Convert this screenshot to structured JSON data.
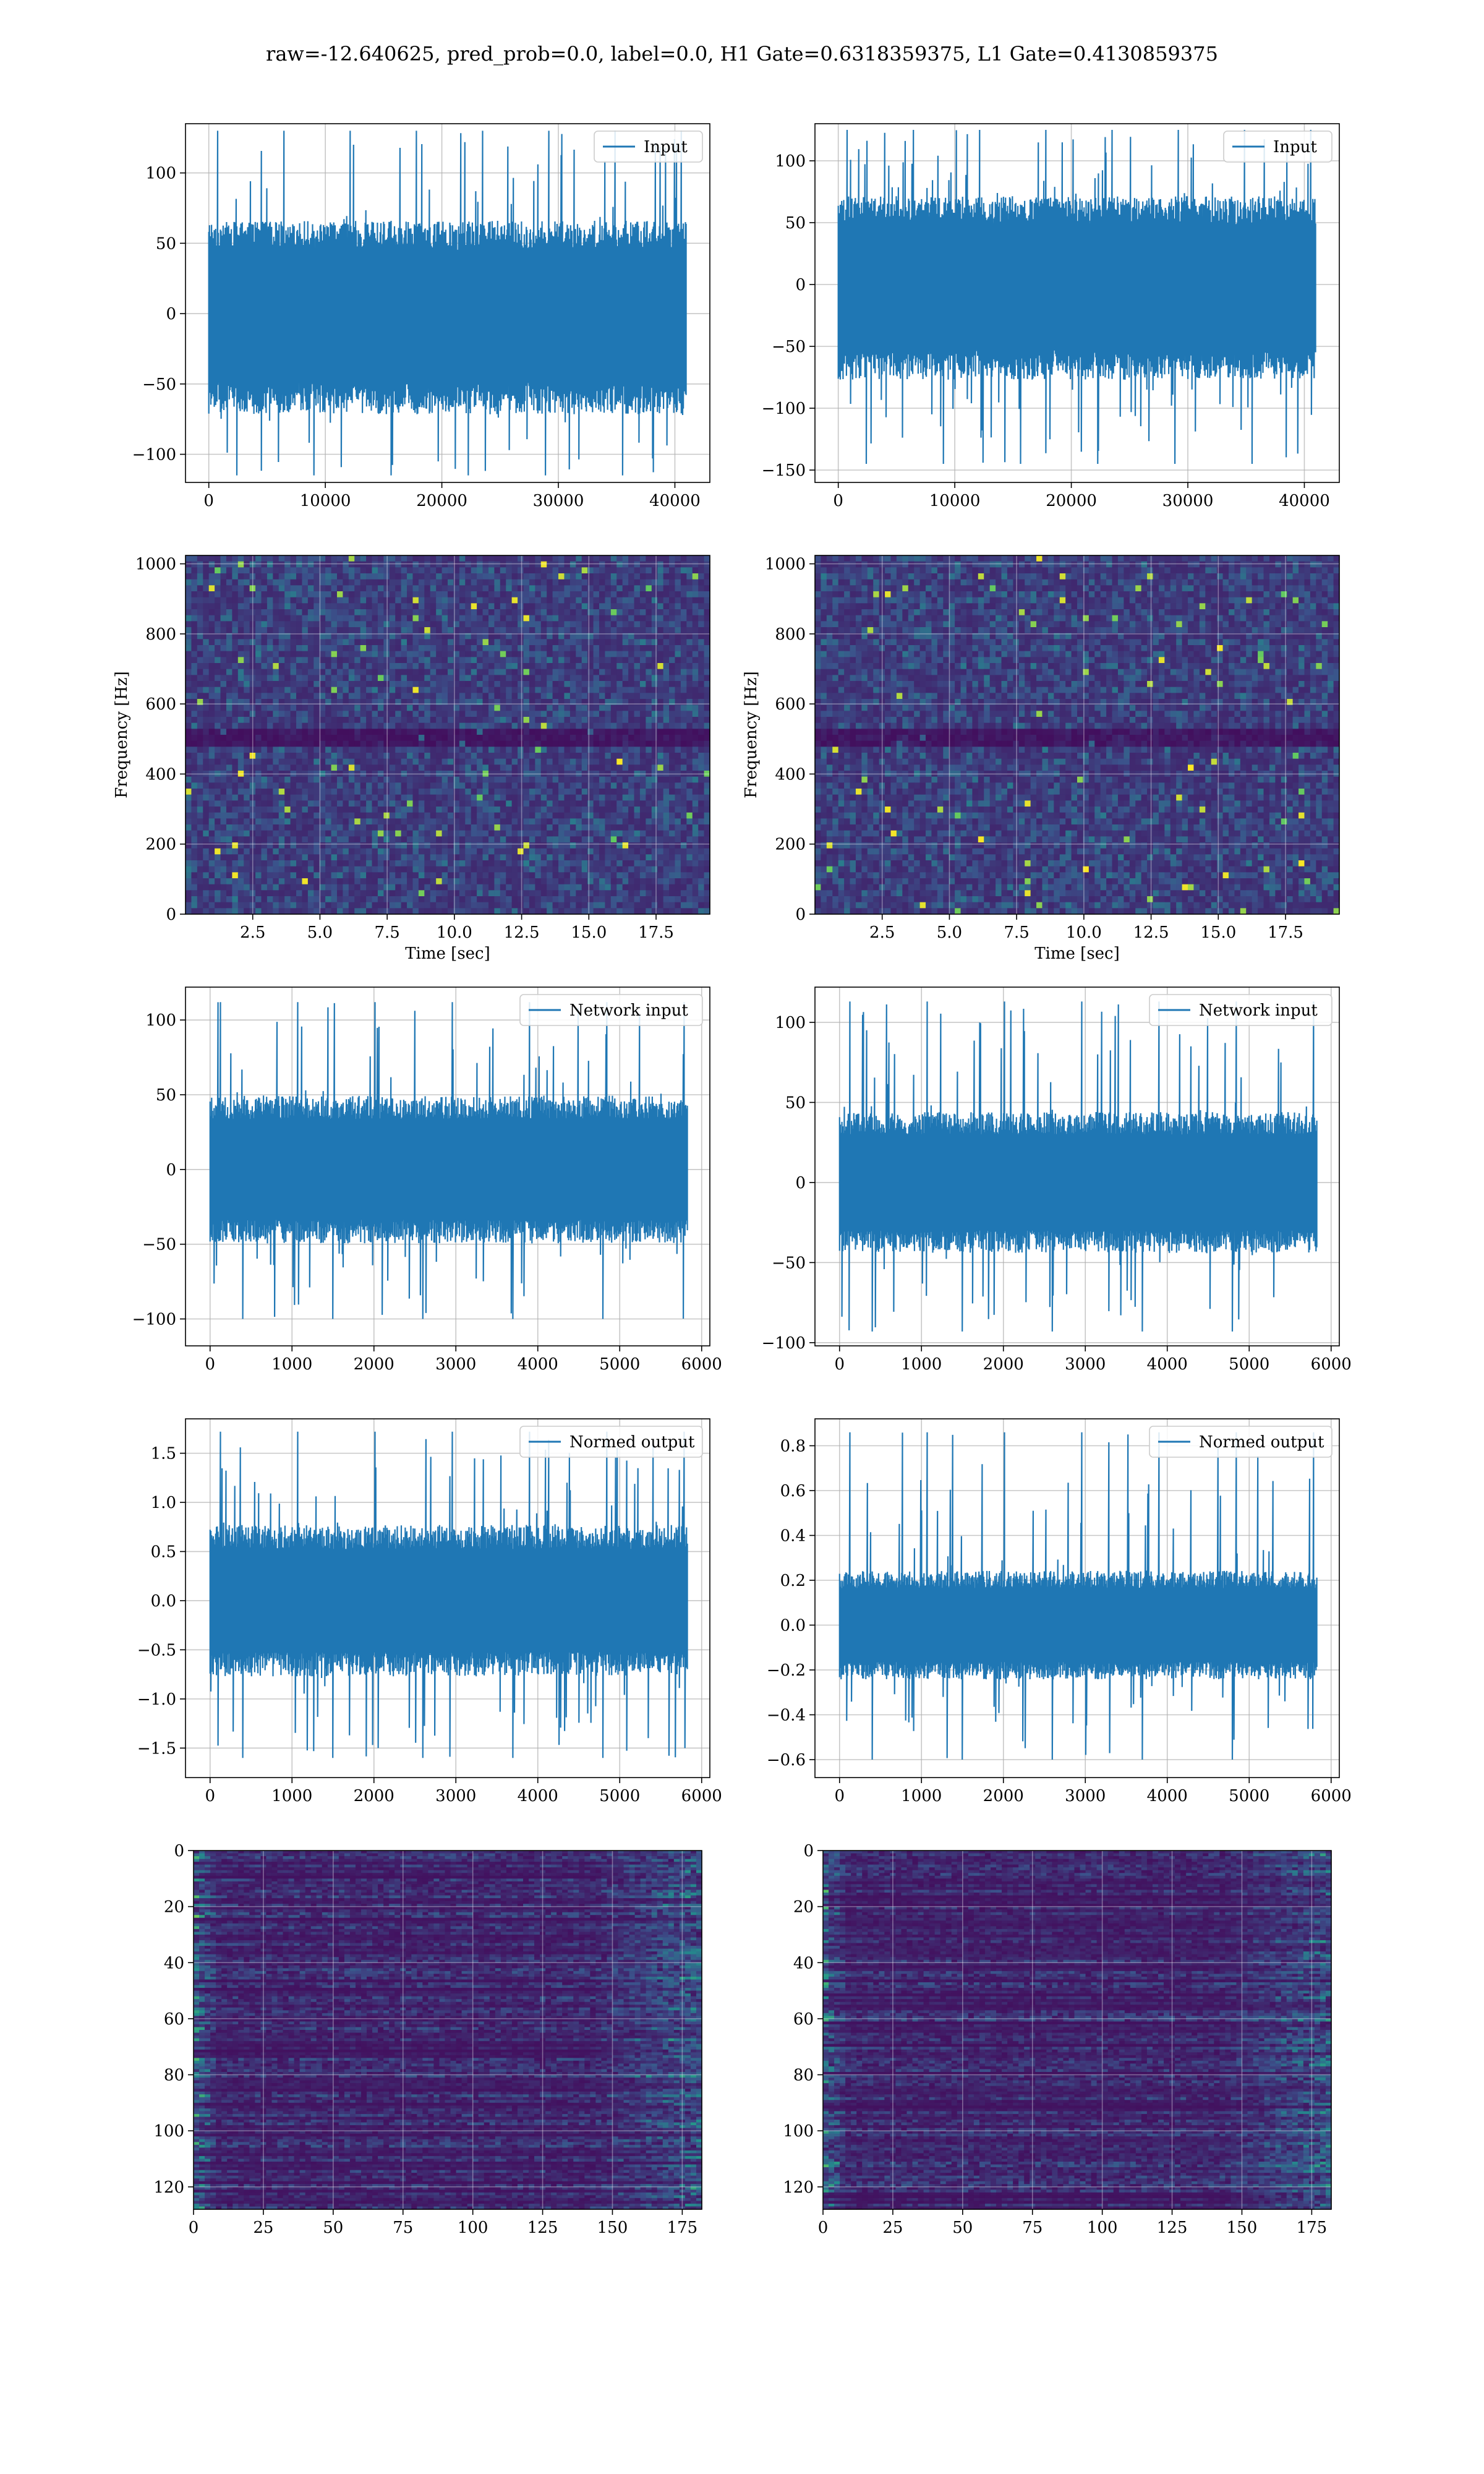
{
  "figure": {
    "suptitle": "raw=-12.640625, pred_prob=0.0, label=0.0, H1 Gate=0.6318359375, L1 Gate=0.4130859375"
  },
  "colors": {
    "series": "#1f77b4",
    "grid": "#b0b0b0",
    "heatmap_low": "#440154",
    "heatmap_mid": "#21918c",
    "heatmap_high": "#fde725"
  },
  "chart_data": [
    {
      "type": "line",
      "id": "input-left",
      "row": 1,
      "col": 1,
      "legend": "Input",
      "legend_position": "top-right",
      "xlim": [
        -2000,
        43000
      ],
      "ylim": [
        -120,
        135
      ],
      "xticks": [
        0,
        10000,
        20000,
        30000,
        40000
      ],
      "xtick_labels": [
        "0",
        "10000",
        "20000",
        "30000",
        "40000"
      ],
      "yticks": [
        -100,
        -50,
        0,
        50,
        100
      ],
      "ytick_labels": [
        "−100",
        "−50",
        "0",
        "50",
        "100"
      ],
      "x_range": [
        0,
        40960
      ],
      "n_points": 700,
      "envelope": {
        "upper": 60,
        "lower": -65,
        "spike_max": 130,
        "spike_min": -115
      },
      "grid": true
    },
    {
      "type": "line",
      "id": "input-right",
      "row": 1,
      "col": 2,
      "legend": "Input",
      "legend_position": "top-right",
      "xlim": [
        -2000,
        43000
      ],
      "ylim": [
        -160,
        130
      ],
      "xticks": [
        0,
        10000,
        20000,
        30000,
        40000
      ],
      "xtick_labels": [
        "0",
        "10000",
        "20000",
        "30000",
        "40000"
      ],
      "yticks": [
        -150,
        -100,
        -50,
        0,
        50,
        100
      ],
      "ytick_labels": [
        "−150",
        "−100",
        "−50",
        "0",
        "50",
        "100"
      ],
      "x_range": [
        0,
        40960
      ],
      "n_points": 700,
      "envelope": {
        "upper": 65,
        "lower": -70,
        "spike_max": 125,
        "spike_min": -145
      },
      "grid": true
    },
    {
      "type": "heatmap",
      "id": "spec-left",
      "row": 2,
      "col": 1,
      "xlabel": "Time [sec]",
      "ylabel": "Frequency [Hz]",
      "xlim": [
        0,
        19.5
      ],
      "ylim": [
        0,
        1024
      ],
      "xticks": [
        2.5,
        5.0,
        7.5,
        10.0,
        12.5,
        15.0,
        17.5
      ],
      "xtick_labels": [
        "2.5",
        "5.0",
        "7.5",
        "10.0",
        "12.5",
        "15.0",
        "17.5"
      ],
      "yticks": [
        0,
        200,
        400,
        600,
        800,
        1000
      ],
      "ytick_labels": [
        "0",
        "200",
        "400",
        "600",
        "800",
        "1000"
      ],
      "rows": 60,
      "cols": 90,
      "grid": true
    },
    {
      "type": "heatmap",
      "id": "spec-right",
      "row": 2,
      "col": 2,
      "xlabel": "Time [sec]",
      "ylabel": "Frequency [Hz]",
      "xlim": [
        0,
        19.5
      ],
      "ylim": [
        0,
        1024
      ],
      "xticks": [
        2.5,
        5.0,
        7.5,
        10.0,
        12.5,
        15.0,
        17.5
      ],
      "xtick_labels": [
        "2.5",
        "5.0",
        "7.5",
        "10.0",
        "12.5",
        "15.0",
        "17.5"
      ],
      "yticks": [
        0,
        200,
        400,
        600,
        800,
        1000
      ],
      "ytick_labels": [
        "0",
        "200",
        "400",
        "600",
        "800",
        "1000"
      ],
      "rows": 60,
      "cols": 90,
      "grid": true
    },
    {
      "type": "line",
      "id": "netin-left",
      "row": 3,
      "col": 1,
      "legend": "Network input",
      "legend_position": "top-right",
      "xlim": [
        -300,
        6100
      ],
      "ylim": [
        -118,
        122
      ],
      "xticks": [
        0,
        1000,
        2000,
        3000,
        4000,
        5000,
        6000
      ],
      "xtick_labels": [
        "0",
        "1000",
        "2000",
        "3000",
        "4000",
        "5000",
        "6000"
      ],
      "yticks": [
        -100,
        -50,
        0,
        50,
        100
      ],
      "ytick_labels": [
        "−100",
        "−50",
        "0",
        "50",
        "100"
      ],
      "x_range": [
        0,
        5825
      ],
      "n_points": 600,
      "envelope": {
        "upper": 45,
        "lower": -45,
        "spike_max": 112,
        "spike_min": -100
      },
      "grid": true
    },
    {
      "type": "line",
      "id": "netin-right",
      "row": 3,
      "col": 2,
      "legend": "Network input",
      "legend_position": "top-right",
      "xlim": [
        -300,
        6100
      ],
      "ylim": [
        -102,
        122
      ],
      "xticks": [
        0,
        1000,
        2000,
        3000,
        4000,
        5000,
        6000
      ],
      "xtick_labels": [
        "0",
        "1000",
        "2000",
        "3000",
        "4000",
        "5000",
        "6000"
      ],
      "yticks": [
        -100,
        -50,
        0,
        50,
        100
      ],
      "ytick_labels": [
        "−100",
        "−50",
        "0",
        "50",
        "100"
      ],
      "x_range": [
        0,
        5825
      ],
      "n_points": 600,
      "envelope": {
        "upper": 40,
        "lower": -40,
        "spike_max": 113,
        "spike_min": -93
      },
      "grid": true
    },
    {
      "type": "line",
      "id": "normout-left",
      "row": 4,
      "col": 1,
      "legend": "Normed output",
      "legend_position": "top-right",
      "xlim": [
        -300,
        6100
      ],
      "ylim": [
        -1.8,
        1.85
      ],
      "xticks": [
        0,
        1000,
        2000,
        3000,
        4000,
        5000,
        6000
      ],
      "xtick_labels": [
        "0",
        "1000",
        "2000",
        "3000",
        "4000",
        "5000",
        "6000"
      ],
      "yticks": [
        -1.5,
        -1.0,
        -0.5,
        0.0,
        0.5,
        1.0,
        1.5
      ],
      "ytick_labels": [
        "−1.5",
        "−1.0",
        "−0.5",
        "0.0",
        "0.5",
        "1.0",
        "1.5"
      ],
      "x_range": [
        0,
        5825
      ],
      "n_points": 600,
      "envelope": {
        "upper": 0.7,
        "lower": -0.7,
        "spike_max": 1.72,
        "spike_min": -1.6
      },
      "grid": true
    },
    {
      "type": "line",
      "id": "normout-right",
      "row": 4,
      "col": 2,
      "legend": "Normed output",
      "legend_position": "top-right",
      "xlim": [
        -300,
        6100
      ],
      "ylim": [
        -0.68,
        0.92
      ],
      "xticks": [
        0,
        1000,
        2000,
        3000,
        4000,
        5000,
        6000
      ],
      "xtick_labels": [
        "0",
        "1000",
        "2000",
        "3000",
        "4000",
        "5000",
        "6000"
      ],
      "yticks": [
        -0.6,
        -0.4,
        -0.2,
        0.0,
        0.2,
        0.4,
        0.6,
        0.8
      ],
      "ytick_labels": [
        "−0.6",
        "−0.4",
        "−0.2",
        "0.0",
        "0.2",
        "0.4",
        "0.6",
        "0.8"
      ],
      "x_range": [
        0,
        5825
      ],
      "n_points": 600,
      "envelope": {
        "upper": 0.22,
        "lower": -0.22,
        "spike_max": 0.86,
        "spike_min": -0.6
      },
      "grid": true
    },
    {
      "type": "heatmap",
      "id": "feat-left",
      "row": 5,
      "col": 1,
      "xlim": [
        0,
        182
      ],
      "ylim": [
        128,
        0
      ],
      "xticks": [
        0,
        25,
        50,
        75,
        100,
        125,
        150,
        175
      ],
      "xtick_labels": [
        "0",
        "25",
        "50",
        "75",
        "100",
        "125",
        "150",
        "175"
      ],
      "yticks": [
        0,
        20,
        40,
        60,
        80,
        100,
        120
      ],
      "ytick_labels": [
        "0",
        "20",
        "40",
        "60",
        "80",
        "100",
        "120"
      ],
      "rows": 128,
      "cols": 91,
      "grid": true
    },
    {
      "type": "heatmap",
      "id": "feat-right",
      "row": 5,
      "col": 2,
      "xlim": [
        0,
        182
      ],
      "ylim": [
        128,
        0
      ],
      "xticks": [
        0,
        25,
        50,
        75,
        100,
        125,
        150,
        175
      ],
      "xtick_labels": [
        "0",
        "25",
        "50",
        "75",
        "100",
        "125",
        "150",
        "175"
      ],
      "yticks": [
        0,
        20,
        40,
        60,
        80,
        100,
        120
      ],
      "ytick_labels": [
        "0",
        "20",
        "40",
        "60",
        "80",
        "100",
        "120"
      ],
      "rows": 128,
      "cols": 91,
      "grid": true
    }
  ]
}
